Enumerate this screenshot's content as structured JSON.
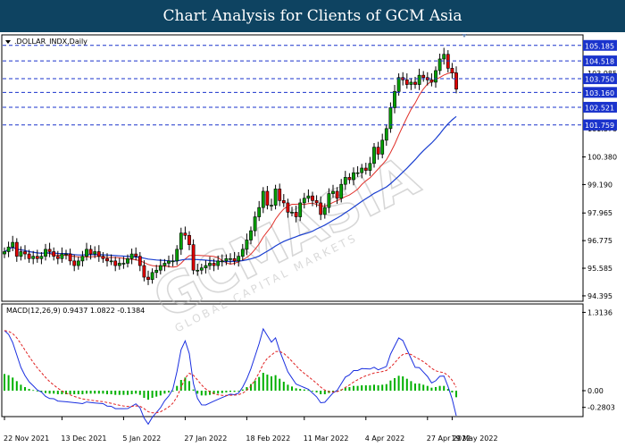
{
  "page": {
    "title": "Chart Analysis for Clients of GCM Asia"
  },
  "chart_data": {
    "type": "candlestick",
    "symbol_label": ".DOLLAR_INDX,Daily",
    "price_ticks": [
      "100.380",
      "99.190",
      "97.965",
      "96.775",
      "95.585",
      "94.395"
    ],
    "price_ylim": [
      94.2,
      105.6
    ],
    "partial_labels": [
      "103.985",
      "101.570"
    ],
    "levels": [
      {
        "value": 105.185,
        "label": "105.185",
        "color": "#1a33cc"
      },
      {
        "value": 104.518,
        "label": "104.518",
        "color": "#1a33cc"
      },
      {
        "value": 103.75,
        "label": "103.750",
        "color": "#1a33cc"
      },
      {
        "value": 103.16,
        "label": "103.160",
        "color": "#1a33cc"
      },
      {
        "value": 102.521,
        "label": "102.521",
        "color": "#1a33cc"
      },
      {
        "value": 101.759,
        "label": "101.759",
        "color": "#1a33cc"
      }
    ],
    "date_labels": [
      "22 Nov 2021",
      "13 Dec 2021",
      "5 Jan 2022",
      "27 Jan 2022",
      "18 Feb 2022",
      "11 Mar 2022",
      "4 Apr 2022",
      "27 Apr 2022",
      "19 May 2022"
    ],
    "closes": [
      96.3,
      96.5,
      96.7,
      96.1,
      96.3,
      96.2,
      96.0,
      96.1,
      96.0,
      96.1,
      96.4,
      96.3,
      96.1,
      96.0,
      96.2,
      96.2,
      95.9,
      95.7,
      95.9,
      96.1,
      96.4,
      96.2,
      96.3,
      96.1,
      96.0,
      95.9,
      95.9,
      95.7,
      95.8,
      95.8,
      96.0,
      96.2,
      96.1,
      95.7,
      95.2,
      95.1,
      95.4,
      95.5,
      95.7,
      95.8,
      95.9,
      95.9,
      96.4,
      97.1,
      97.0,
      96.6,
      95.5,
      95.5,
      95.6,
      95.7,
      95.8,
      95.7,
      95.9,
      95.9,
      96.0,
      96.0,
      95.9,
      96.1,
      96.4,
      96.8,
      97.2,
      97.8,
      98.2,
      98.9,
      98.3,
      98.3,
      99.0,
      98.5,
      98.4,
      98.0,
      98.0,
      97.8,
      98.4,
      98.6,
      98.7,
      98.5,
      98.4,
      97.9,
      98.2,
      98.8,
      98.9,
      98.6,
      99.2,
      99.5,
      99.4,
      99.7,
      99.7,
      99.9,
      99.8,
      100.1,
      100.8,
      100.5,
      101.1,
      101.6,
      102.5,
      103.2,
      103.8,
      103.7,
      103.5,
      103.6,
      103.5,
      103.9,
      103.8,
      103.7,
      103.6,
      104.1,
      104.6,
      104.8,
      104.2,
      104.0,
      103.3
    ]
  },
  "macd": {
    "label": "MACD(12,26,9) 0.9437 1.0822 -0.1384",
    "ticks": [
      "1.3136",
      "0.00",
      "-0.2803"
    ],
    "ylim": [
      -0.42,
      1.44
    ],
    "histogram": [
      0.28,
      0.26,
      0.22,
      0.16,
      0.1,
      0.06,
      0.03,
      0.01,
      -0.01,
      -0.02,
      -0.04,
      -0.05,
      -0.05,
      -0.06,
      -0.06,
      -0.06,
      -0.06,
      -0.06,
      -0.06,
      -0.06,
      -0.05,
      -0.05,
      -0.05,
      -0.05,
      -0.05,
      -0.06,
      -0.06,
      -0.07,
      -0.07,
      -0.07,
      -0.07,
      -0.06,
      -0.05,
      -0.07,
      -0.12,
      -0.15,
      -0.12,
      -0.1,
      -0.08,
      -0.05,
      -0.03,
      0.0,
      0.08,
      0.18,
      0.22,
      0.16,
      0.02,
      -0.05,
      -0.08,
      -0.08,
      -0.07,
      -0.06,
      -0.05,
      -0.04,
      -0.03,
      -0.02,
      -0.02,
      -0.01,
      0.02,
      0.06,
      0.11,
      0.17,
      0.23,
      0.3,
      0.27,
      0.24,
      0.26,
      0.2,
      0.15,
      0.1,
      0.07,
      0.04,
      0.03,
      0.02,
      0.01,
      -0.01,
      -0.03,
      -0.06,
      -0.06,
      -0.04,
      -0.02,
      -0.01,
      0.02,
      0.05,
      0.06,
      0.08,
      0.08,
      0.09,
      0.09,
      0.09,
      0.1,
      0.09,
      0.1,
      0.11,
      0.17,
      0.21,
      0.25,
      0.24,
      0.2,
      0.16,
      0.12,
      0.12,
      0.1,
      0.08,
      0.05,
      0.06,
      0.08,
      0.08,
      0.03,
      -0.03,
      -0.11
    ]
  }
}
